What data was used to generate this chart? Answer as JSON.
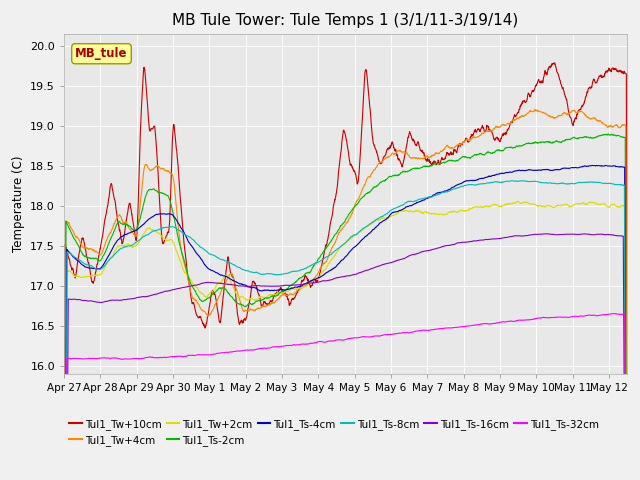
{
  "title": "MB Tule Tower: Tule Temps 1 (3/1/11-3/19/14)",
  "ylabel": "Temperature (C)",
  "ylim": [
    15.9,
    20.15
  ],
  "xlim": [
    0,
    15.5
  ],
  "yticks": [
    16.0,
    16.5,
    17.0,
    17.5,
    18.0,
    18.5,
    19.0,
    19.5,
    20.0
  ],
  "xtick_labels": [
    "Apr 27",
    "Apr 28",
    "Apr 29",
    "Apr 30",
    "May 1",
    "May 2",
    "May 3",
    "May 4",
    "May 5",
    "May 6",
    "May 7",
    "May 8",
    "May 9",
    "May 10",
    "May 11",
    "May 12"
  ],
  "series": [
    {
      "name": "Tul1_Tw+10cm",
      "color": "#cc0000"
    },
    {
      "name": "Tul1_Tw+4cm",
      "color": "#ff8800"
    },
    {
      "name": "Tul1_Tw+2cm",
      "color": "#dddd00"
    },
    {
      "name": "Tul1_Ts-2cm",
      "color": "#00bb00"
    },
    {
      "name": "Tul1_Ts-4cm",
      "color": "#0000cc"
    },
    {
      "name": "Tul1_Ts-8cm",
      "color": "#00bbbb"
    },
    {
      "name": "Tul1_Ts-16cm",
      "color": "#8800cc"
    },
    {
      "name": "Tul1_Ts-32cm",
      "color": "#ff00ff"
    }
  ],
  "legend_label": "MB_tule",
  "legend_label_color": "#aa0000",
  "legend_box_facecolor": "#ffff99",
  "legend_box_edgecolor": "#999900",
  "background_color": "#e8e8e8",
  "fig_background": "#f0f0f0",
  "title_fontsize": 11
}
